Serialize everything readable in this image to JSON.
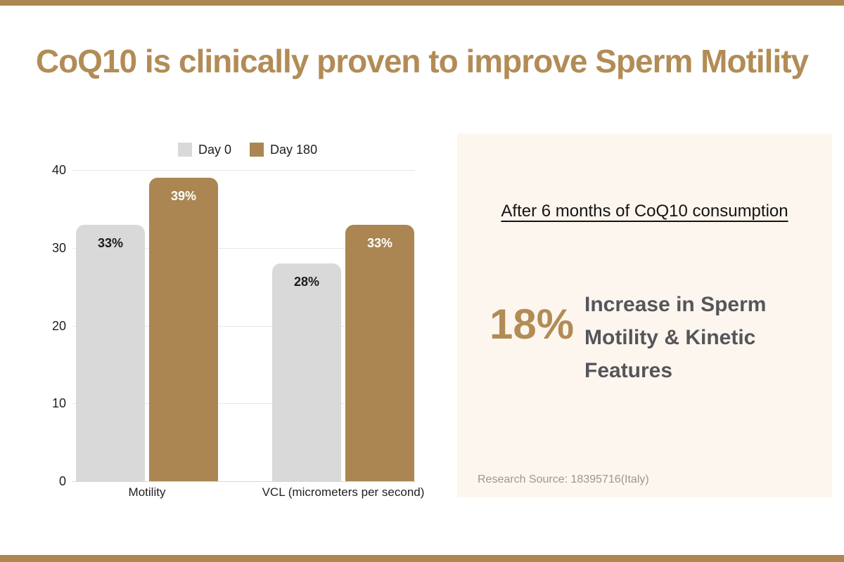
{
  "title": "CoQ10 is clinically proven to improve Sperm Motility",
  "colors": {
    "accent_tan": "#ad8750",
    "title_tan": "#b28c56",
    "bar_day0": "#d9d9d9",
    "bar_day180": "#ab8552",
    "panel_bg": "#fdf6ef",
    "stat_text_gray": "#55565a",
    "source_gray": "#9d978d"
  },
  "chart_data": {
    "type": "bar",
    "title": "",
    "xlabel": "",
    "ylabel": "",
    "categories": [
      "Motility",
      "VCL (micrometers per second)"
    ],
    "series": [
      {
        "name": "Day 0",
        "color": "#d9d9d9",
        "label_color": "#1b1b1b",
        "values": [
          33,
          28
        ],
        "labels": [
          "33%",
          "28%"
        ]
      },
      {
        "name": "Day 180",
        "color": "#ab8552",
        "label_color": "#ffffff",
        "values": [
          39,
          33
        ],
        "labels": [
          "39%",
          "33%"
        ]
      }
    ],
    "ylim": [
      0,
      40
    ],
    "yticks": [
      40,
      30,
      20,
      10,
      0
    ],
    "grid": true,
    "legend_position": "top-center"
  },
  "panel": {
    "headline": "After 6 months of CoQ10 consumption",
    "stat_value": "18%",
    "stat_description_lines": [
      "Increase in Sperm",
      "Motility & Kinetic",
      "Features"
    ],
    "source": "Research Source: 18395716(Italy)"
  }
}
